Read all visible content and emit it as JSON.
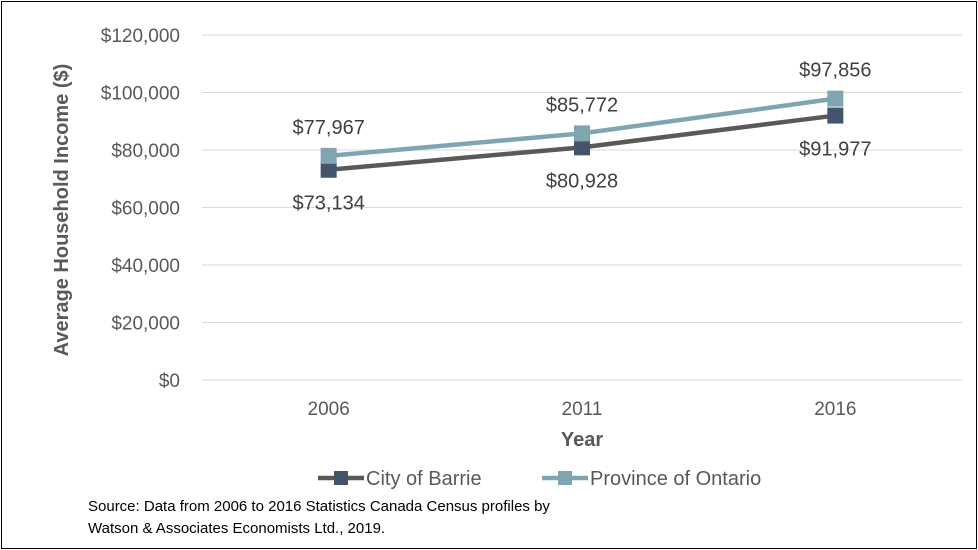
{
  "chart_data": {
    "type": "line",
    "categories": [
      "2006",
      "2011",
      "2016"
    ],
    "series": [
      {
        "name": "City of Barrie",
        "values": [
          73134,
          80928,
          91977
        ],
        "labels": [
          "$73,134",
          "$80,928",
          "$91,977"
        ],
        "color": "#595959",
        "marker_color": "#44546A"
      },
      {
        "name": "Province of Ontario",
        "values": [
          77967,
          85772,
          97856
        ],
        "labels": [
          "$77,967",
          "$85,772",
          "$97,856"
        ],
        "color": "#7FA6B0",
        "marker_color": "#7FA6B0"
      }
    ],
    "y_ticks": [
      "$0",
      "$20,000",
      "$40,000",
      "$60,000",
      "$80,000",
      "$100,000",
      "$120,000"
    ],
    "ylim": [
      0,
      120000
    ],
    "xlabel": "Year",
    "ylabel": "Average Household Income ($)",
    "grid": true,
    "legend_position": "bottom"
  },
  "source": {
    "line1": "Source:  Data from 2006 to 2016 Statistics Canada Census profiles by",
    "line2": "Watson & Associates Economists Ltd., 2019."
  }
}
